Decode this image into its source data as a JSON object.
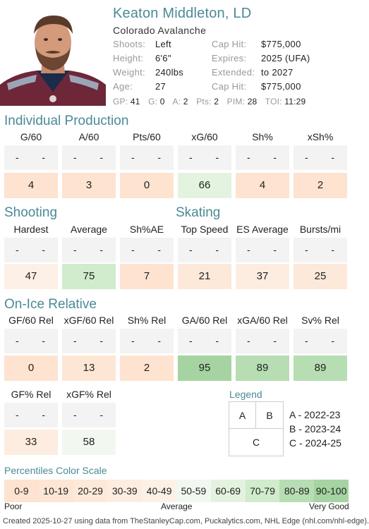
{
  "player": {
    "name": "Keaton Middleton, LD",
    "team": "Colorado Avalanche",
    "rows": [
      {
        "k1": "Shoots:",
        "v1": "Left",
        "k2": "Cap Hit:",
        "v2": "$775,000"
      },
      {
        "k1": "Height:",
        "v1": "6'6\"",
        "k2": "Expires:",
        "v2": "2025 (UFA)"
      },
      {
        "k1": "Weight:",
        "v1": "240lbs",
        "k2": "Extended:",
        "v2": "to 2027"
      },
      {
        "k1": "Age:",
        "v1": "27",
        "k2": "Cap Hit:",
        "v2": "$775,000"
      }
    ],
    "statline": [
      {
        "k": "GP:",
        "v": "41"
      },
      {
        "k": "G:",
        "v": "0"
      },
      {
        "k": "A:",
        "v": "2"
      },
      {
        "k": "Pts:",
        "v": "2"
      },
      {
        "k": "PIM:",
        "v": "28"
      },
      {
        "k": "TOI:",
        "v": "11:29"
      }
    ]
  },
  "colors": {
    "accent": "#4a8a96",
    "empty_cell": "#f3f3f3",
    "scale": [
      "#fde3d0",
      "#fde6d4",
      "#fde9da",
      "#fdede0",
      "#fdf1e7",
      "#f2f8ef",
      "#e4f3df",
      "#d1ebcd",
      "#b7ddb3",
      "#a5d4a2"
    ]
  },
  "sections": {
    "individual": {
      "title": "Individual Production",
      "cols": [
        {
          "label": "G/60",
          "value": "4",
          "pct": 4
        },
        {
          "label": "A/60",
          "value": "3",
          "pct": 3
        },
        {
          "label": "Pts/60",
          "value": "0",
          "pct": 0
        },
        {
          "label": "xG/60",
          "value": "66",
          "pct": 66
        },
        {
          "label": "Sh%",
          "value": "4",
          "pct": 4
        },
        {
          "label": "xSh%",
          "value": "2",
          "pct": 2
        }
      ]
    },
    "shooting": {
      "title": "Shooting",
      "cols": [
        {
          "label": "Hardest",
          "value": "47",
          "pct": 47
        },
        {
          "label": "Average",
          "value": "75",
          "pct": 75
        },
        {
          "label": "Sh%AE",
          "value": "7",
          "pct": 7
        }
      ]
    },
    "skating": {
      "title": "Skating",
      "cols": [
        {
          "label": "Top Speed",
          "value": "21",
          "pct": 21
        },
        {
          "label": "ES Average",
          "value": "37",
          "pct": 37
        },
        {
          "label": "Bursts/mi",
          "value": "25",
          "pct": 25
        }
      ]
    },
    "onice": {
      "title": "On-Ice Relative",
      "cols": [
        {
          "label": "GF/60 Rel",
          "value": "0",
          "pct": 0
        },
        {
          "label": "xGF/60 Rel",
          "value": "13",
          "pct": 13
        },
        {
          "label": "Sh% Rel",
          "value": "2",
          "pct": 2
        },
        {
          "label": "GA/60 Rel",
          "value": "95",
          "pct": 95
        },
        {
          "label": "xGA/60 Rel",
          "value": "89",
          "pct": 89
        },
        {
          "label": "Sv% Rel",
          "value": "89",
          "pct": 89
        }
      ],
      "cols2": [
        {
          "label": "GF% Rel",
          "value": "33",
          "pct": 33
        },
        {
          "label": "xGF% Rel",
          "value": "58",
          "pct": 58
        }
      ]
    }
  },
  "legend": {
    "title": "Legend",
    "a": "A",
    "b": "B",
    "c": "C",
    "lines": [
      "A - 2022-23",
      "B - 2023-24",
      "C - 2024-25"
    ]
  },
  "scale": {
    "title": "Percentiles Color Scale",
    "ranges": [
      "0-9",
      "10-19",
      "20-29",
      "30-39",
      "40-49",
      "50-59",
      "60-69",
      "70-79",
      "80-89",
      "90-100"
    ],
    "poor": "Poor",
    "average": "Average",
    "good": "Very Good"
  },
  "footer": "Created 2025-10-27 using data from TheStanleyCap.com, Puckalytics.com, NHL Edge (nhl.com/nhl-edge)."
}
